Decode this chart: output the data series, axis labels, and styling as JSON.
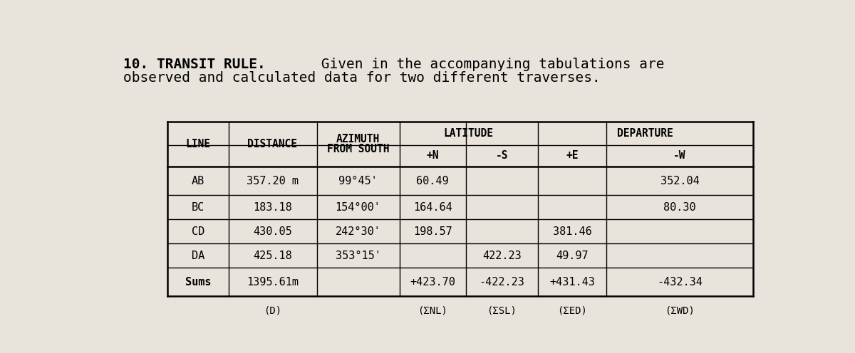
{
  "bg_color": "#e8e4dc",
  "title_bold": "10. TRANSIT RULE.",
  "title_rest_line1": " Given in the accompanying tabulations are",
  "title_line2": "observed and calculated data for two different traverses.",
  "font_size_title": 14,
  "font_size_table_header": 10.5,
  "font_size_table_data": 11,
  "font_size_footnote": 10,
  "rows": [
    [
      "AB",
      "357.20 m",
      "99°45'",
      "60.49",
      "",
      "",
      "352.04"
    ],
    [
      "BC",
      "183.18",
      "154°00'",
      "164.64",
      "",
      "",
      "80.30"
    ],
    [
      "CD",
      "430.05",
      "242°30'",
      "198.57",
      "",
      "381.46",
      ""
    ],
    [
      "DA",
      "425.18",
      "353°15'",
      "",
      "422.23",
      "49.97",
      ""
    ]
  ],
  "sums": [
    "Sums",
    "1395.61m",
    "",
    "+423.70",
    "-422.23",
    "+431.43",
    "-432.34"
  ],
  "footnotes": [
    "",
    "(D)",
    "",
    "(ΣNL)",
    "(ΣSL)",
    "(ΣED)",
    "(ΣWD)"
  ]
}
